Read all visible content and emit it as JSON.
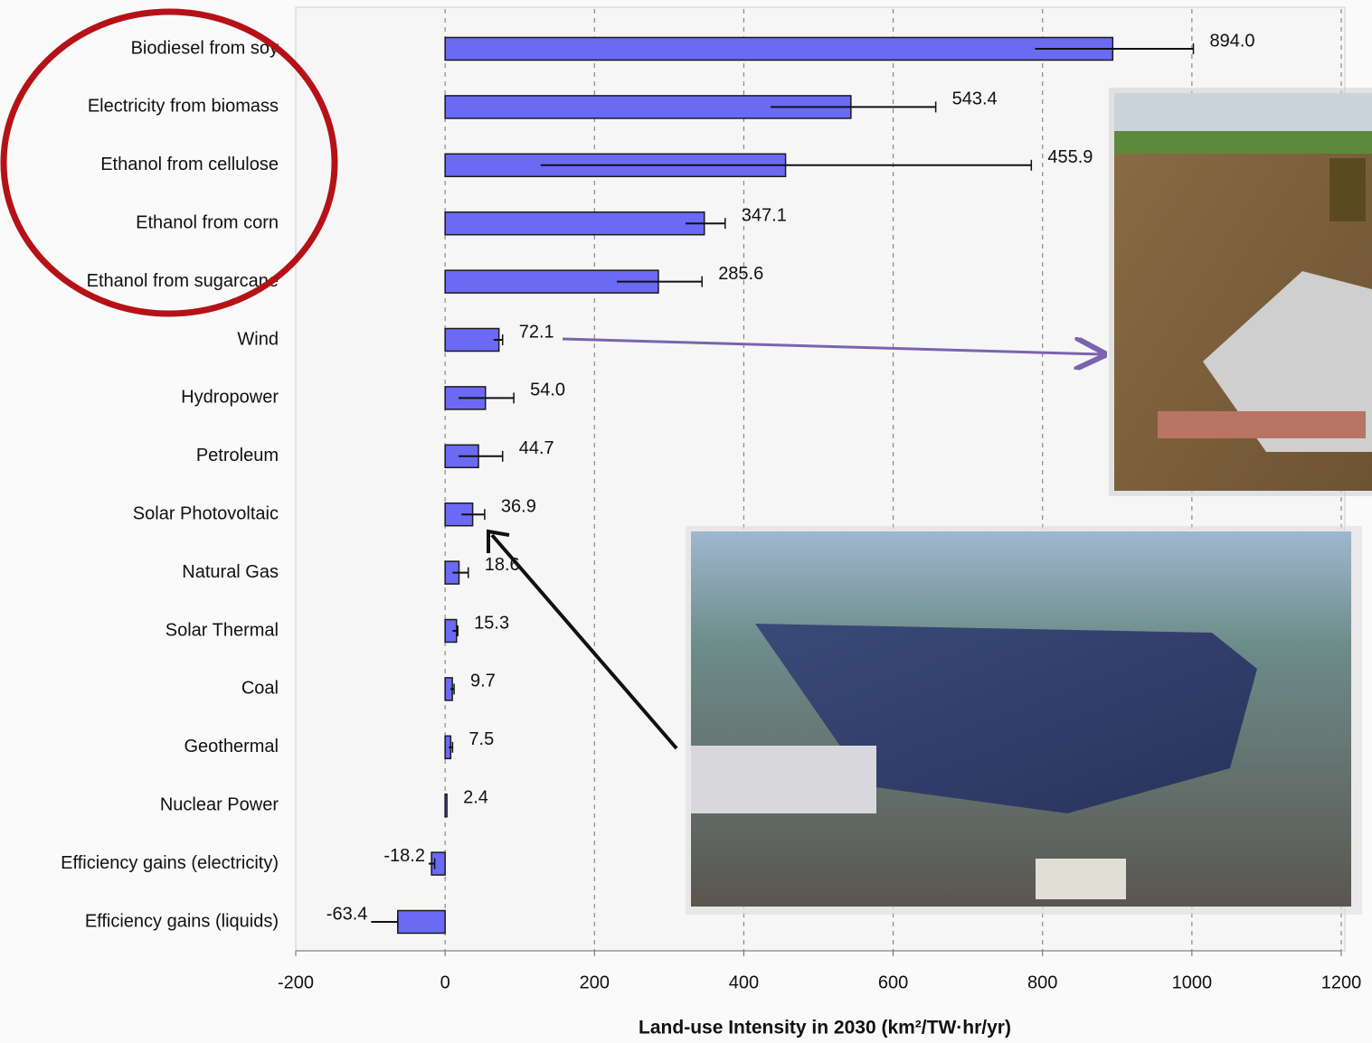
{
  "chart_data": {
    "type": "bar",
    "orientation": "horizontal",
    "x_label": "Land-use Intensity in 2030  (km²/TW·hr/yr)",
    "categories": [
      "Biodiesel from soy",
      "Electricity from biomass",
      "Ethanol from cellulose",
      "Ethanol from corn",
      "Ethanol from sugarcane",
      "Wind",
      "Hydropower",
      "Petroleum",
      "Solar Photovoltaic",
      "Natural Gas",
      "Solar Thermal",
      "Coal",
      "Geothermal",
      "Nuclear Power",
      "Efficiency gains (electricity)",
      "Efficiency gains (liquids)"
    ],
    "values": [
      894.0,
      543.4,
      455.9,
      347.1,
      285.6,
      72.1,
      54.0,
      44.7,
      36.9,
      18.6,
      15.3,
      9.7,
      7.5,
      2.4,
      -18.2,
      -63.4
    ],
    "value_labels": [
      "894.0",
      "543.4",
      "455.9",
      "347.1",
      "285.6",
      "72.1",
      "54.0",
      "44.7",
      "36.9",
      "18.6",
      "15.3",
      "9.7",
      "7.5",
      "2.4",
      "-18.2",
      "-63.4"
    ],
    "error_low": [
      790,
      436,
      128,
      322,
      230,
      65,
      18,
      18,
      22,
      10,
      10,
      7,
      5,
      null,
      -22,
      -99
    ],
    "error_high": [
      1002,
      657,
      785,
      375,
      344,
      77,
      92,
      77,
      53,
      31,
      17,
      12,
      10,
      null,
      -14,
      -63.4
    ],
    "color": "#6a6af5",
    "xlim": [
      -200,
      1200
    ],
    "xticks": [
      -200,
      0,
      200,
      400,
      600,
      800,
      1000,
      1200
    ],
    "grid": true
  }
}
